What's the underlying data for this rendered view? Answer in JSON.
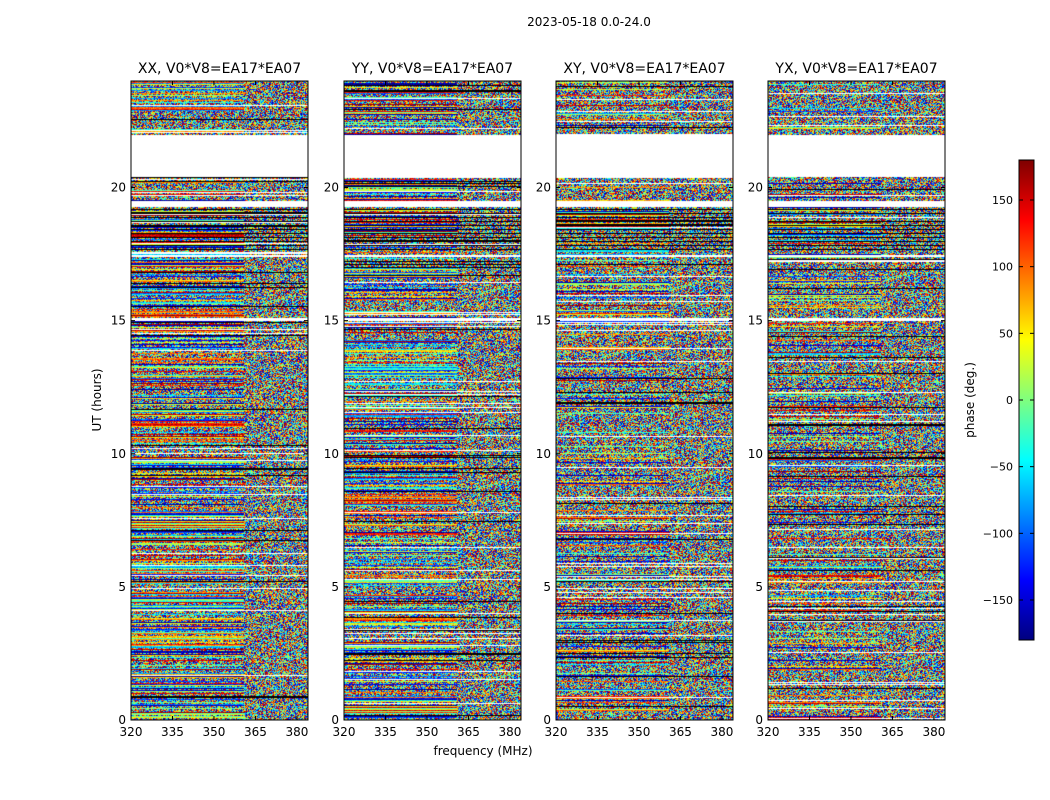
{
  "suptitle": "2023-05-18 0.0-24.0",
  "chart_data": {
    "type": "heatmap",
    "x": {
      "label": "frequency (MHz)",
      "range": [
        320,
        384
      ],
      "ticks": [
        320,
        335,
        350,
        365,
        380
      ]
    },
    "y": {
      "label": "UT (hours)",
      "range": [
        0,
        24
      ],
      "ticks": [
        0,
        5,
        10,
        15,
        20
      ]
    },
    "colorbar": {
      "label": "phase (deg.)",
      "range": [
        -180,
        180
      ],
      "ticks": [
        -150,
        -100,
        -50,
        0,
        50,
        100,
        150
      ],
      "tick_labels": [
        "−150",
        "−100",
        "−50",
        "0",
        "50",
        "100",
        "150"
      ],
      "colormap": "jet",
      "colors": [
        "#00007f",
        "#0000ff",
        "#007fff",
        "#00ffff",
        "#7fff7f",
        "#ffff00",
        "#ff7f00",
        "#ff0000",
        "#7f0000"
      ]
    },
    "panels": [
      {
        "title": "XX, V0*V8=EA17*EA07"
      },
      {
        "title": "YY, V0*V8=EA17*EA07"
      },
      {
        "title": "XY, V0*V8=EA17*EA07"
      },
      {
        "title": "YX, V0*V8=EA17*EA07"
      }
    ],
    "flagged_ut_ranges": [
      [
        15.0,
        15.1
      ],
      [
        17.4,
        17.5
      ],
      [
        19.3,
        19.5
      ],
      [
        20.4,
        22.0
      ]
    ],
    "band_split_mhz": 361,
    "grid": false
  }
}
